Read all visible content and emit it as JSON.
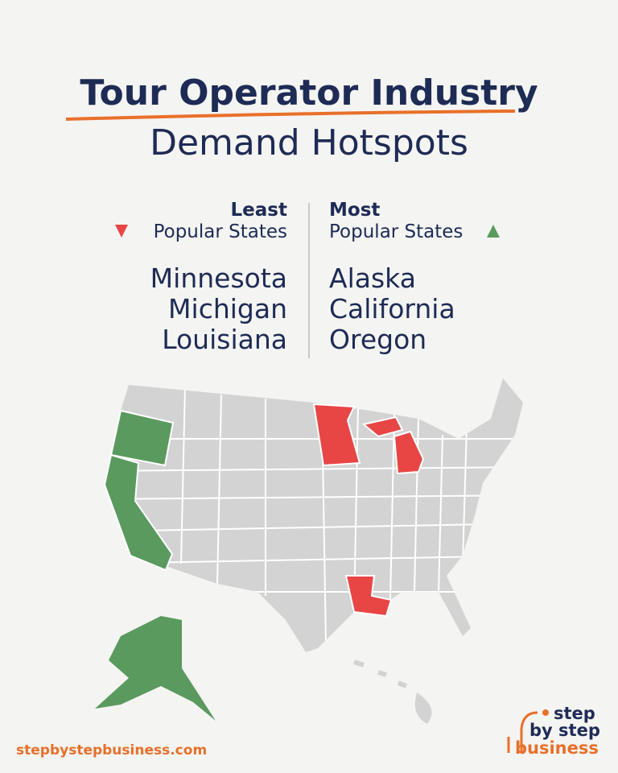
{
  "header": {
    "title": "Tour Operator Industry",
    "subtitle": "Demand Hotspots"
  },
  "least": {
    "heading": "Least",
    "subheading": "Popular States",
    "states": [
      "Minnesota",
      "Michigan",
      "Louisiana"
    ]
  },
  "most": {
    "heading": "Most",
    "subheading": "Popular States",
    "states": [
      "Alaska",
      "California",
      "Oregon"
    ]
  },
  "footer": {
    "url": "stepbystepbusiness.com",
    "logo": [
      "step",
      "by step",
      "business"
    ]
  }
}
